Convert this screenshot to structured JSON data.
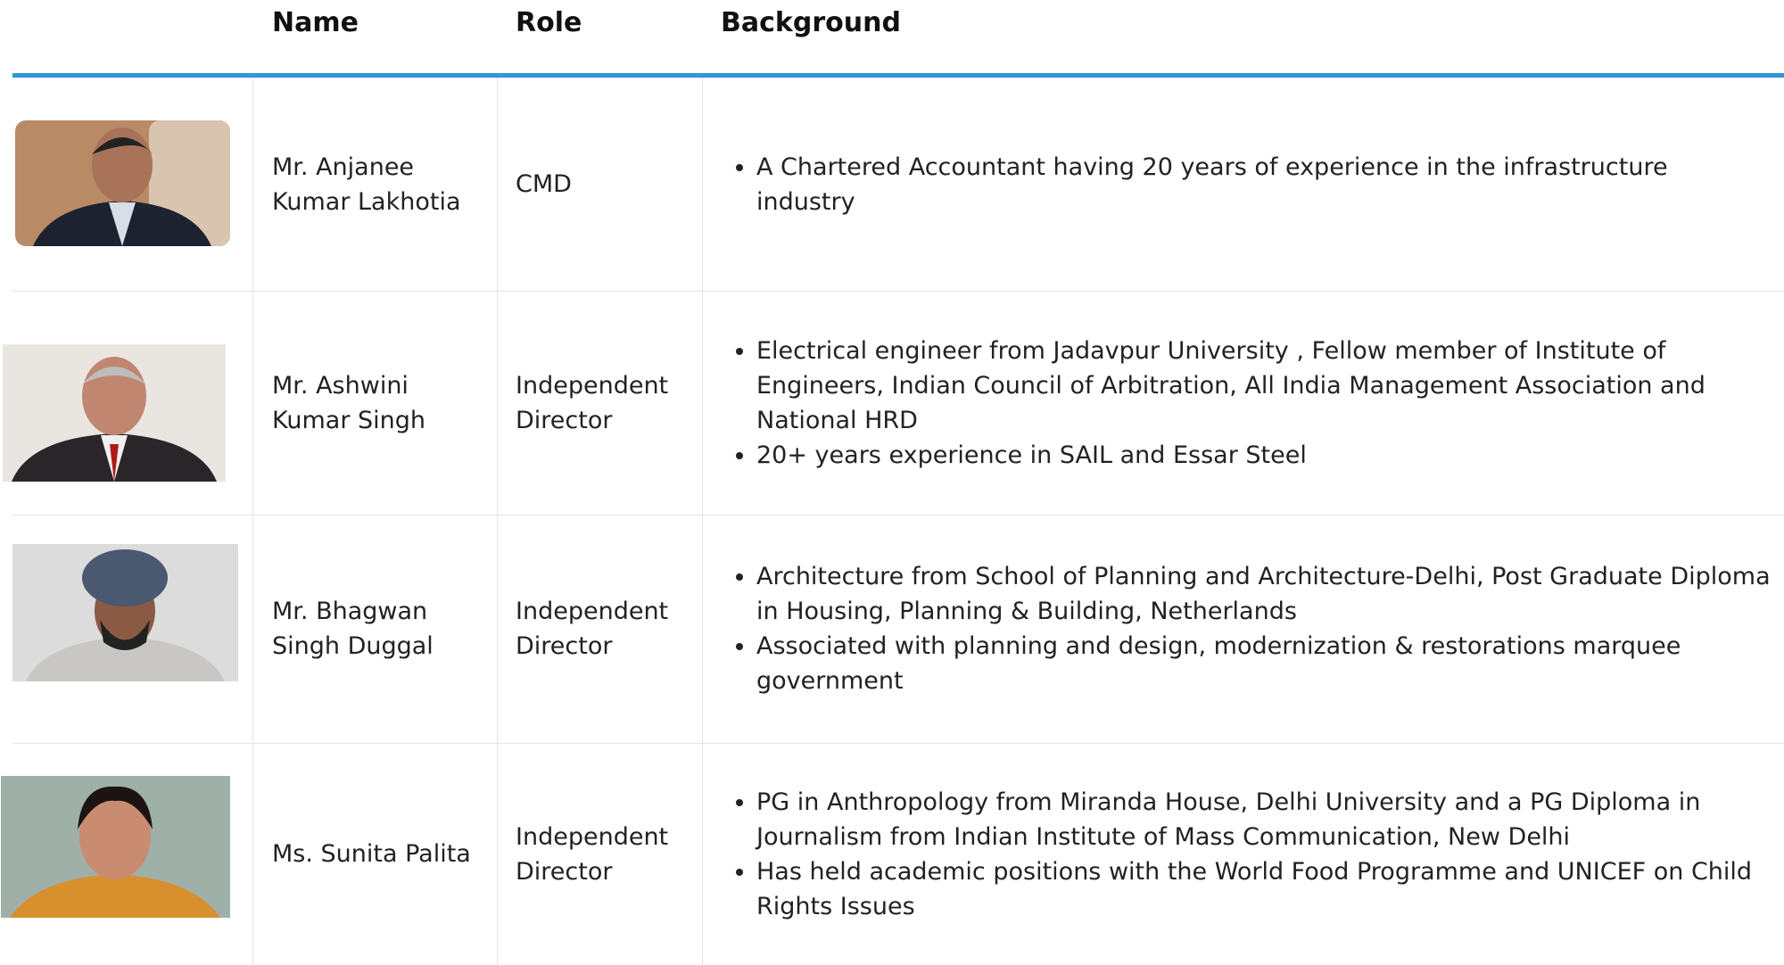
{
  "header": {
    "name": "Name",
    "role": "Role",
    "background": "Background"
  },
  "rows": [
    {
      "name": "Mr. Anjanee Kumar Lakhotia",
      "role": "CMD",
      "background": [
        "A Chartered Accountant having 20 years of experience in the infrastructure industry"
      ]
    },
    {
      "name": "Mr. Ashwini Kumar Singh",
      "role": "Independent Director",
      "background": [
        "Electrical engineer from Jadavpur University , Fellow member of Institute of Engineers, Indian Council of Arbitration, All India Management Association and National HRD",
        "20+ years experience in SAIL and Essar Steel"
      ]
    },
    {
      "name": "Mr. Bhagwan Singh Duggal",
      "role": "Independent Director",
      "background": [
        "Architecture from School of Planning and Architecture-Delhi, Post Graduate Diploma in Housing, Planning & Building, Netherlands",
        "Associated with planning and design, modernization & restorations marquee government"
      ]
    },
    {
      "name": "Ms. Sunita Palita",
      "role": "Independent Director",
      "background": [
        "PG in Anthropology from Miranda House, Delhi University and a PG Diploma in Journalism from Indian Institute of Mass Communication, New Delhi",
        "Has held academic positions with the World Food Programme and UNICEF on Child Rights Issues"
      ]
    }
  ]
}
